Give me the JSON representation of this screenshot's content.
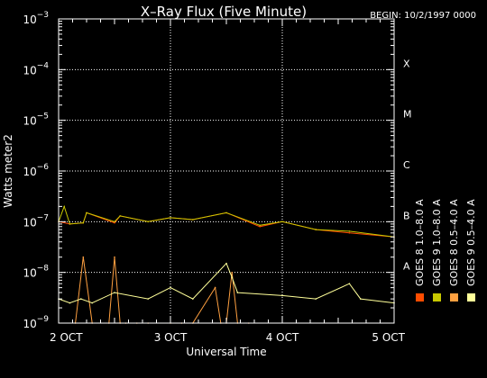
{
  "chart_data": {
    "type": "line",
    "title": "X–Ray Flux (Five Minute)",
    "begin_label": "BEGIN: 10/2/1997 0000",
    "ylabel": "Watts meter2",
    "xlabel": "Universal Time",
    "y_scale": "log",
    "ylim": [
      1e-09,
      0.001
    ],
    "xlim": [
      0,
      3
    ],
    "grid": true,
    "y_ticks": [
      {
        "value": 1e-09,
        "base": "10",
        "exp": "−9"
      },
      {
        "value": 1e-08,
        "base": "10",
        "exp": "−8"
      },
      {
        "value": 1e-07,
        "base": "10",
        "exp": "−7"
      },
      {
        "value": 1e-06,
        "base": "10",
        "exp": "−6"
      },
      {
        "value": 1e-05,
        "base": "10",
        "exp": "−5"
      },
      {
        "value": 0.0001,
        "base": "10",
        "exp": "−4"
      },
      {
        "value": 0.001,
        "base": "10",
        "exp": "−3"
      }
    ],
    "x_ticks": [
      {
        "value": 0,
        "label": "2 OCT"
      },
      {
        "value": 1,
        "label": "3 OCT"
      },
      {
        "value": 2,
        "label": "4 OCT"
      },
      {
        "value": 3,
        "label": "5 OCT"
      }
    ],
    "flare_classes": [
      {
        "label": "A",
        "value": 1e-08
      },
      {
        "label": "B",
        "value": 1e-07
      },
      {
        "label": "C",
        "value": 1e-06
      },
      {
        "label": "M",
        "value": 1e-05
      },
      {
        "label": "X",
        "value": 0.0001
      }
    ],
    "series": [
      {
        "name": "GOES 8 1.0–8.0 A",
        "color": "#ff4c00",
        "x": [
          0,
          0.1,
          0.22,
          0.25,
          0.5,
          0.55,
          0.8,
          1.0,
          1.2,
          1.5,
          1.8,
          2.0,
          2.3,
          2.6,
          3.0
        ],
        "y": [
          1e-07,
          9e-08,
          9.5e-08,
          1.5e-07,
          9.5e-08,
          1.3e-07,
          1e-07,
          1.2e-07,
          1.1e-07,
          1.5e-07,
          8e-08,
          1e-07,
          7e-08,
          6e-08,
          5e-08
        ]
      },
      {
        "name": "GOES 8 0.5–4.0 A",
        "color": "#ffa040",
        "x": [
          0.15,
          0.22,
          0.3,
          0.45,
          0.5,
          0.55,
          0.6,
          0.7,
          0.8,
          1.0,
          1.1,
          1.2,
          1.4,
          1.45,
          1.5,
          1.55,
          1.6,
          1.7
        ],
        "y": [
          1e-09,
          2e-08,
          1e-09,
          1e-09,
          2e-08,
          1e-09,
          1e-09,
          1e-09,
          1e-09,
          1e-09,
          1e-09,
          1e-09,
          5e-09,
          1e-09,
          1e-09,
          1e-08,
          1e-09,
          1e-09
        ]
      },
      {
        "name": "GOES 9 1.0–8.0 A",
        "color": "#c8c800",
        "x": [
          0,
          0.05,
          0.1,
          0.22,
          0.25,
          0.5,
          0.55,
          0.8,
          1.0,
          1.2,
          1.5,
          1.8,
          2.0,
          2.3,
          2.6,
          3.0
        ],
        "y": [
          1e-07,
          2e-07,
          9e-08,
          9.5e-08,
          1.5e-07,
          1e-07,
          1.3e-07,
          1e-07,
          1.2e-07,
          1.1e-07,
          1.5e-07,
          8.5e-08,
          1e-07,
          7e-08,
          6.5e-08,
          5e-08
        ]
      },
      {
        "name": "GOES 9 0.5–4.0 A",
        "color": "#ffff99",
        "x": [
          0,
          0.1,
          0.2,
          0.3,
          0.5,
          0.8,
          1.0,
          1.2,
          1.5,
          1.55,
          1.6,
          2.0,
          2.3,
          2.6,
          2.7,
          3.0
        ],
        "y": [
          3e-09,
          2.5e-09,
          3e-09,
          2.5e-09,
          4e-09,
          3e-09,
          5e-09,
          3e-09,
          1.5e-08,
          8e-09,
          4e-09,
          3.5e-09,
          3e-09,
          6e-09,
          3e-09,
          2.5e-09
        ]
      }
    ]
  }
}
